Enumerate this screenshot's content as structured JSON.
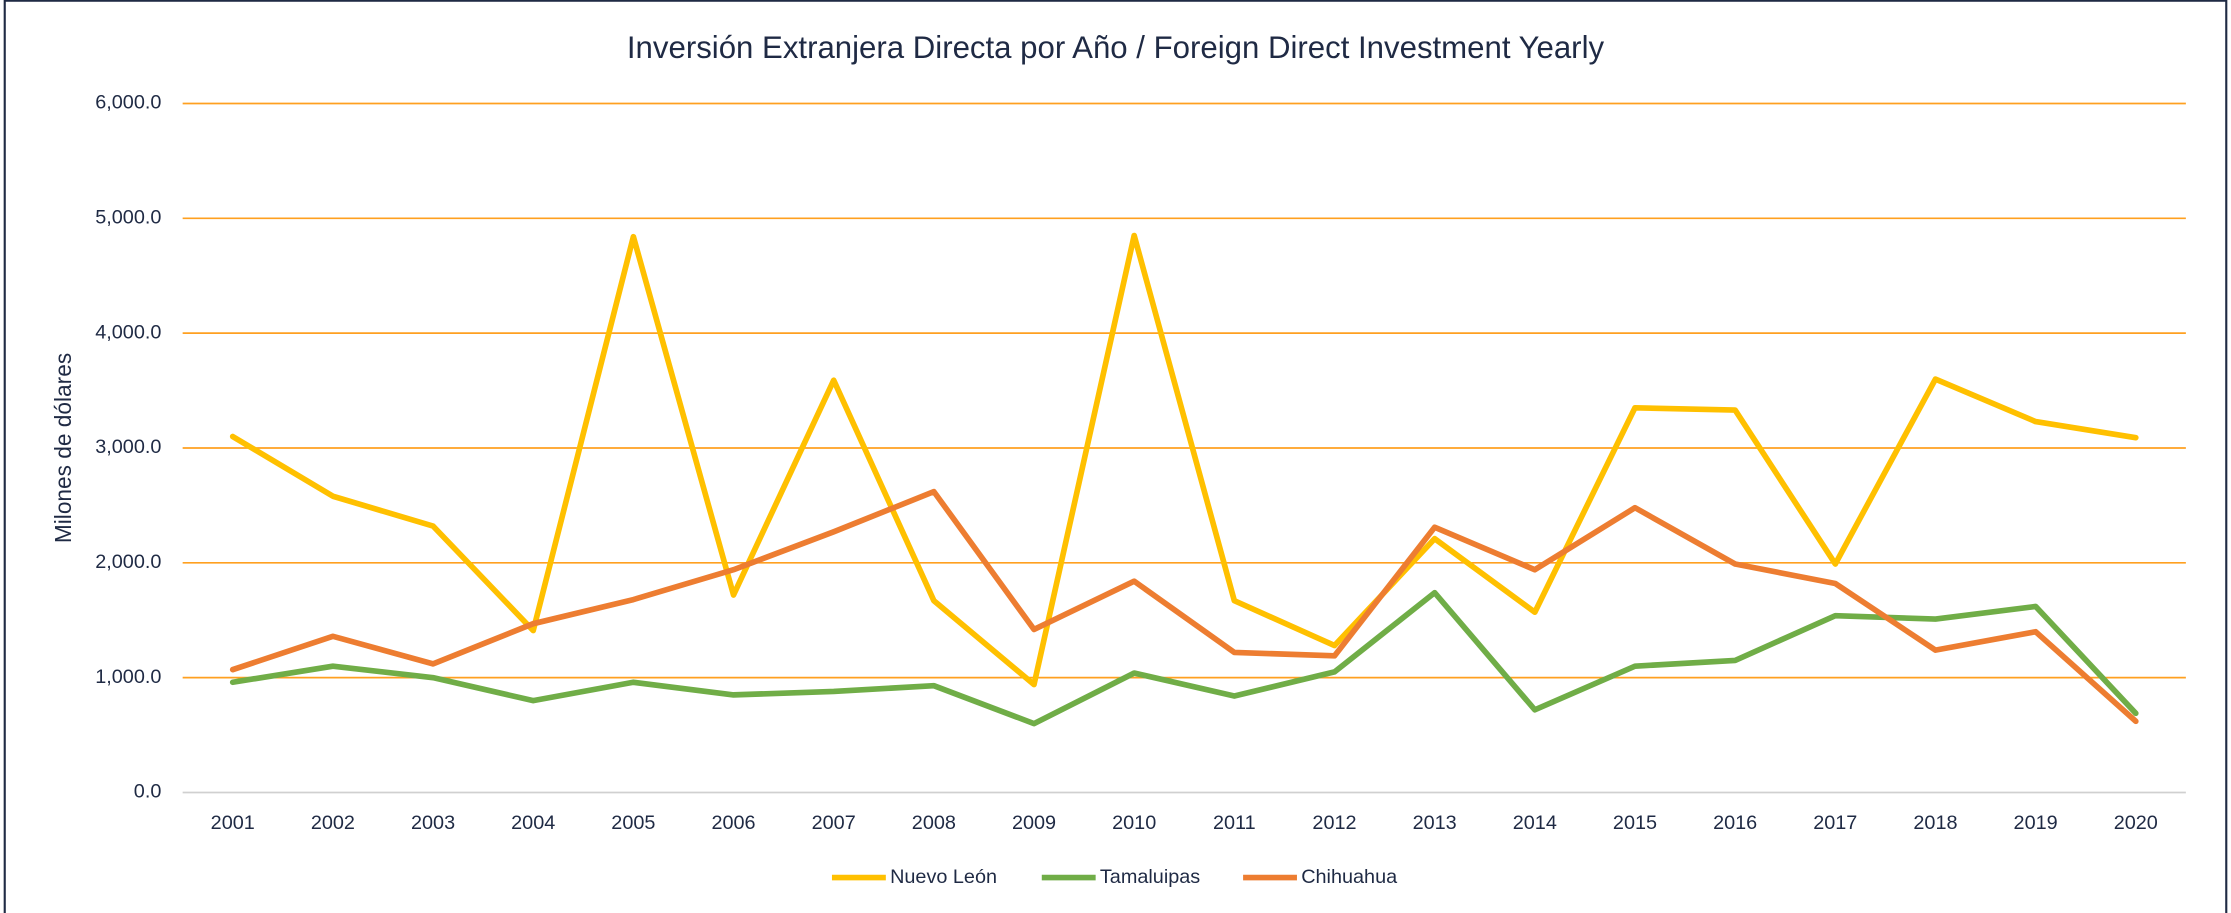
{
  "chart_data": {
    "type": "line",
    "title": "Inversión Extranjera Directa por Año / Foreign Direct Investment Yearly",
    "y_label": "Milones de dólares",
    "categories": [
      "2001",
      "2002",
      "2003",
      "2004",
      "2005",
      "2006",
      "2007",
      "2008",
      "2009",
      "2010",
      "2011",
      "2012",
      "2013",
      "2014",
      "2015",
      "2016",
      "2017",
      "2018",
      "2019",
      "2020"
    ],
    "series": [
      {
        "name": "Nuevo León",
        "color": "#ffc000",
        "values": [
          3100,
          2580,
          2320,
          1410,
          4840,
          1720,
          3590,
          1670,
          940,
          4850,
          1670,
          1280,
          2210,
          1570,
          3350,
          3330,
          1990,
          3600,
          3230,
          3090
        ]
      },
      {
        "name": "Tamaluipas",
        "color": "#70ad47",
        "values": [
          960,
          1100,
          1000,
          800,
          960,
          850,
          880,
          930,
          600,
          1040,
          840,
          1050,
          1740,
          720,
          1100,
          1150,
          1540,
          1510,
          1620,
          690
        ]
      },
      {
        "name": "Chihuahua",
        "color": "#ed7d31",
        "values": [
          1070,
          1360,
          1120,
          1470,
          1680,
          1940,
          2270,
          2620,
          1420,
          1840,
          1220,
          1190,
          2310,
          1940,
          2480,
          1990,
          1820,
          1240,
          1400,
          620
        ]
      }
    ],
    "ylim": [
      0,
      6000
    ],
    "yticks": [
      {
        "value": 0,
        "label": "0.0"
      },
      {
        "value": 1000,
        "label": "1,000.0"
      },
      {
        "value": 2000,
        "label": "2,000.0"
      },
      {
        "value": 3000,
        "label": "3,000.0"
      },
      {
        "value": 4000,
        "label": "4,000.0"
      },
      {
        "value": 5000,
        "label": "5,000.0"
      },
      {
        "value": 6000,
        "label": "6,000.0"
      }
    ],
    "grid": true,
    "grid_color": "#ffa020",
    "legend": "bottom"
  }
}
